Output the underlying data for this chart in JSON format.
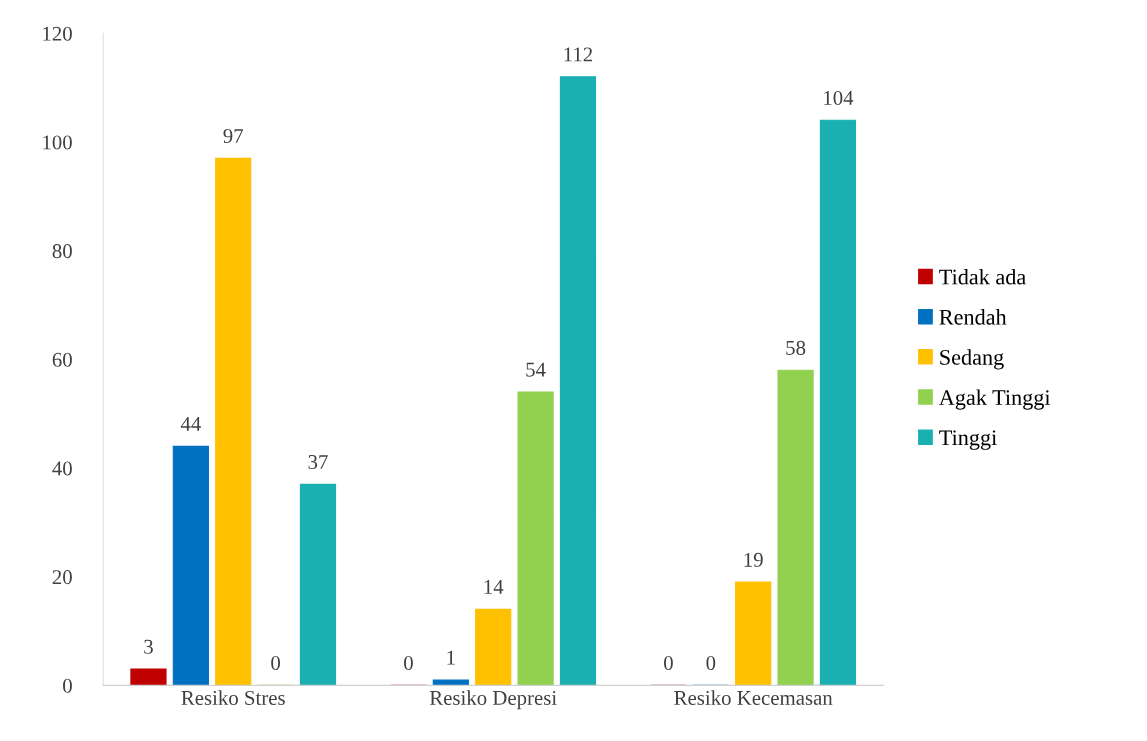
{
  "chart_data": {
    "type": "bar",
    "categories": [
      "Resiko Stres",
      "Resiko Depresi",
      "Resiko Kecemasan"
    ],
    "series": [
      {
        "name": "Tidak ada",
        "color": "#c00000",
        "values": [
          3,
          0,
          0
        ]
      },
      {
        "name": "Rendah",
        "color": "#0070c0",
        "values": [
          44,
          1,
          0
        ]
      },
      {
        "name": "Sedang",
        "color": "#ffc000",
        "values": [
          97,
          14,
          19
        ]
      },
      {
        "name": "Agak Tinggi",
        "color": "#92d050",
        "values": [
          0,
          54,
          58
        ]
      },
      {
        "name": "Tinggi",
        "color": "#1aafb0",
        "values": [
          37,
          112,
          104
        ]
      }
    ],
    "ylim": [
      0,
      120
    ],
    "yticks": [
      0,
      20,
      40,
      60,
      80,
      100,
      120
    ],
    "data_labels": true,
    "grid": false,
    "legend": "right"
  }
}
